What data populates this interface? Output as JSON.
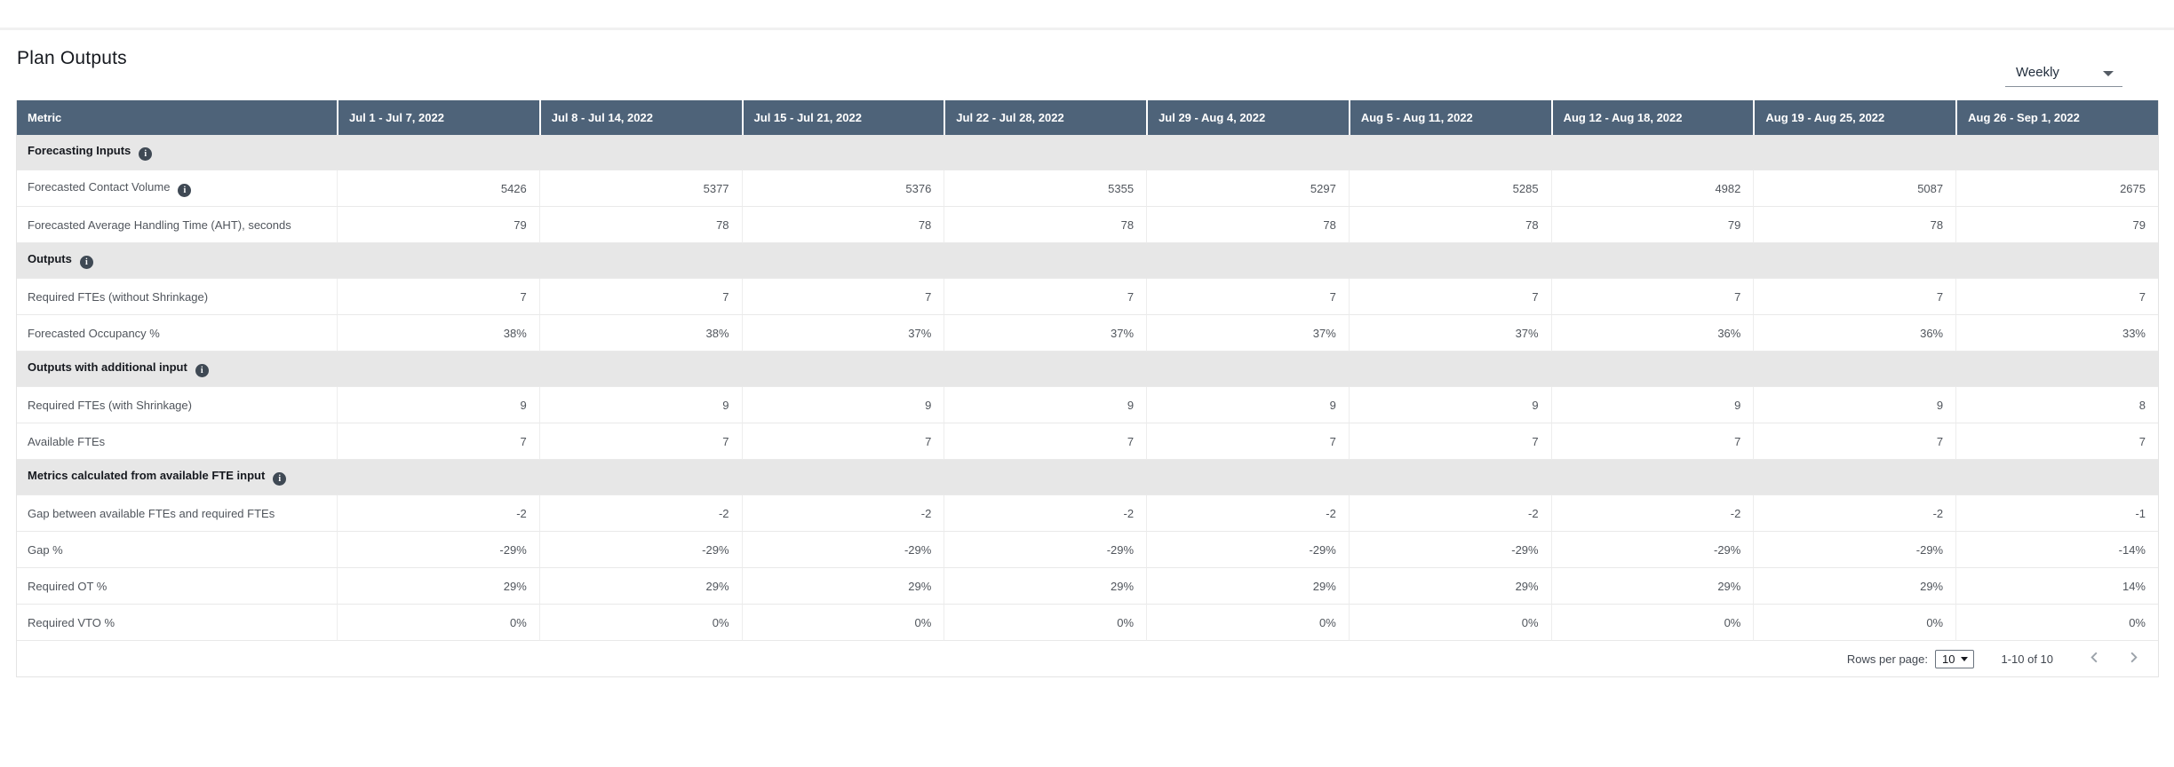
{
  "page": {
    "title": "Plan Outputs"
  },
  "controls": {
    "granularity_selected": "Weekly",
    "granularity_options_visible": [
      "Weekly"
    ]
  },
  "icons": {
    "info_glyph": "i",
    "dropdown_caret": "chevron-down",
    "prev_chevron": "chevron-left",
    "next_chevron": "chevron-right"
  },
  "colors": {
    "header_bg": "#4e6379",
    "header_text": "#ffffff",
    "section_row_bg": "#e7e7e7",
    "row_border": "#e9e9e9",
    "cell_text": "#50555c",
    "info_icon_bg": "#3f4954"
  },
  "table": {
    "columns": [
      "Metric",
      "Jul 1 - Jul 7, 2022",
      "Jul 8 - Jul 14, 2022",
      "Jul 15 - Jul 21, 2022",
      "Jul 22 - Jul 28, 2022",
      "Jul 29 - Aug 4, 2022",
      "Aug 5 - Aug 11, 2022",
      "Aug 12 - Aug 18, 2022",
      "Aug 19 - Aug 25, 2022",
      "Aug 26 - Sep 1, 2022"
    ],
    "sections": [
      {
        "label": "Forecasting Inputs",
        "info": true,
        "rows": [
          {
            "metric": "Forecasted Contact Volume",
            "info": true,
            "values": [
              "5426",
              "5377",
              "5376",
              "5355",
              "5297",
              "5285",
              "4982",
              "5087",
              "2675"
            ]
          },
          {
            "metric": "Forecasted Average Handling Time (AHT), seconds",
            "info": false,
            "values": [
              "79",
              "78",
              "78",
              "78",
              "78",
              "78",
              "79",
              "78",
              "79"
            ]
          }
        ]
      },
      {
        "label": "Outputs",
        "info": true,
        "rows": [
          {
            "metric": "Required FTEs (without Shrinkage)",
            "info": false,
            "values": [
              "7",
              "7",
              "7",
              "7",
              "7",
              "7",
              "7",
              "7",
              "7"
            ]
          },
          {
            "metric": "Forecasted Occupancy %",
            "info": false,
            "values": [
              "38%",
              "38%",
              "37%",
              "37%",
              "37%",
              "37%",
              "36%",
              "36%",
              "33%"
            ]
          }
        ]
      },
      {
        "label": "Outputs with additional input",
        "info": true,
        "rows": [
          {
            "metric": "Required FTEs (with Shrinkage)",
            "info": false,
            "values": [
              "9",
              "9",
              "9",
              "9",
              "9",
              "9",
              "9",
              "9",
              "8"
            ]
          },
          {
            "metric": "Available FTEs",
            "info": false,
            "values": [
              "7",
              "7",
              "7",
              "7",
              "7",
              "7",
              "7",
              "7",
              "7"
            ]
          }
        ]
      },
      {
        "label": "Metrics calculated from available FTE input",
        "info": true,
        "rows": [
          {
            "metric": "Gap between available FTEs and required FTEs",
            "info": false,
            "values": [
              "-2",
              "-2",
              "-2",
              "-2",
              "-2",
              "-2",
              "-2",
              "-2",
              "-1"
            ]
          },
          {
            "metric": "Gap %",
            "info": false,
            "values": [
              "-29%",
              "-29%",
              "-29%",
              "-29%",
              "-29%",
              "-29%",
              "-29%",
              "-29%",
              "-14%"
            ]
          },
          {
            "metric": "Required OT %",
            "info": false,
            "values": [
              "29%",
              "29%",
              "29%",
              "29%",
              "29%",
              "29%",
              "29%",
              "29%",
              "14%"
            ]
          },
          {
            "metric": "Required VTO %",
            "info": false,
            "values": [
              "0%",
              "0%",
              "0%",
              "0%",
              "0%",
              "0%",
              "0%",
              "0%",
              "0%"
            ]
          }
        ]
      }
    ],
    "pagination": {
      "rows_per_page_label": "Rows per page:",
      "rows_per_page_value": "10",
      "range_text": "1-10 of 10"
    }
  }
}
